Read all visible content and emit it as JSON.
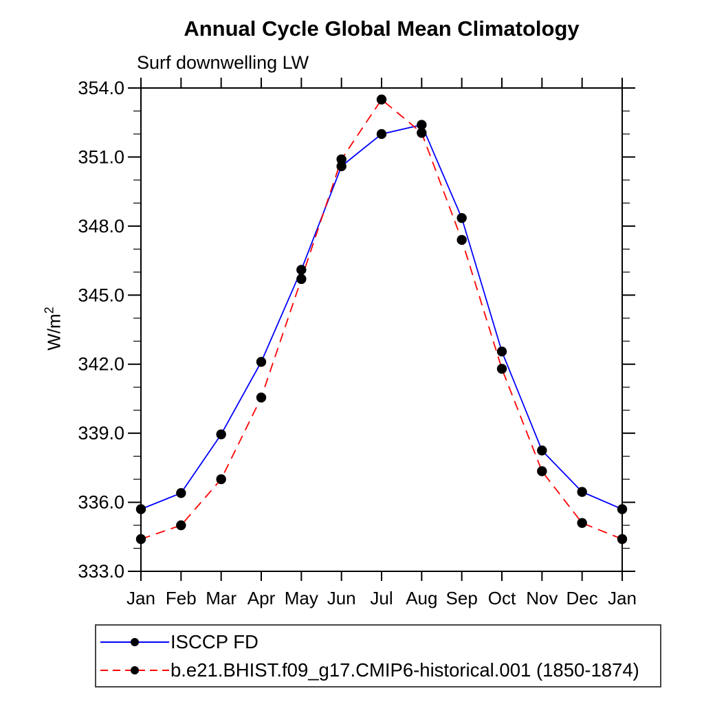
{
  "header": {
    "title": "Annual Cycle Global Mean Climatology",
    "subtitle": "Surf downwelling LW"
  },
  "y_axis": {
    "label_base": "W/m",
    "label_exponent": "2",
    "tick_labels": [
      "354.0",
      "351.0",
      "348.0",
      "345.0",
      "342.0",
      "339.0",
      "336.0",
      "333.0"
    ]
  },
  "chart_data": {
    "type": "line",
    "title": "Annual Cycle Global Mean Climatology",
    "subtitle": "Surf downwelling LW",
    "ylabel": "W/m^2",
    "categories": [
      "Jan",
      "Feb",
      "Mar",
      "Apr",
      "May",
      "Jun",
      "Jul",
      "Aug",
      "Sep",
      "Oct",
      "Nov",
      "Dec",
      "Jan"
    ],
    "ylim": [
      333.0,
      354.0
    ],
    "ytick_major_interval": 3.0,
    "ytick_minor_interval": 1.0,
    "grid": false,
    "legend_position": "bottom-left",
    "marker": {
      "shape": "circle",
      "color": "#000000"
    },
    "series": [
      {
        "name": "ISCCP FD",
        "color": "#0000ff",
        "line_style": "solid",
        "values": [
          335.7,
          336.4,
          338.95,
          342.1,
          346.1,
          350.6,
          352.0,
          352.4,
          348.35,
          342.55,
          338.25,
          336.45,
          335.7
        ]
      },
      {
        "name": "b.e21.BHIST.f09_g17.CMIP6-historical.001 (1850-1874)",
        "color": "#ff0000",
        "line_style": "dashed",
        "values": [
          334.4,
          335.0,
          337.0,
          340.55,
          345.7,
          350.9,
          353.5,
          352.05,
          347.4,
          341.8,
          337.35,
          335.1,
          334.4
        ]
      }
    ]
  }
}
